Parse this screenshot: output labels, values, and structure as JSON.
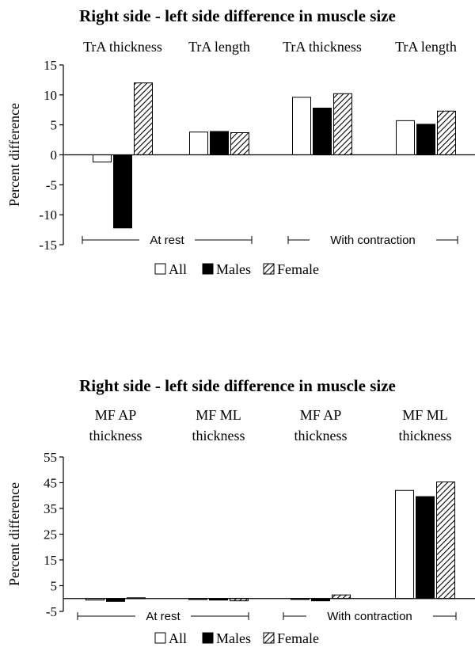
{
  "chart_data": [
    {
      "type": "bar",
      "title": "Right side - left side difference in muscle size",
      "ylabel": "Percent difference",
      "ylim": [
        -15,
        15
      ],
      "yticks": [
        15,
        10,
        5,
        0,
        -5,
        -10,
        -15
      ],
      "categories": [
        [
          "TrA thickness"
        ],
        [
          "TrA length"
        ],
        [
          "TrA thickness"
        ],
        [
          "TrA length"
        ]
      ],
      "groups": [
        "At rest",
        "With contraction"
      ],
      "series": [
        {
          "name": "All",
          "values": [
            -1.2,
            3.8,
            9.6,
            5.7
          ]
        },
        {
          "name": "Males",
          "values": [
            -12.2,
            3.9,
            7.8,
            5.1
          ]
        },
        {
          "name": "Female",
          "values": [
            12.0,
            3.7,
            10.2,
            7.3
          ]
        }
      ],
      "legend": "bottom",
      "grid": false
    },
    {
      "type": "bar",
      "title": "Right side - left side difference in muscle size",
      "ylabel": "Percent difference",
      "ylim": [
        -5,
        55
      ],
      "yticks": [
        55,
        45,
        35,
        25,
        15,
        5,
        -5
      ],
      "categories": [
        [
          "MF AP",
          "thickness"
        ],
        [
          "MF ML",
          "thickness"
        ],
        [
          "MF AP",
          "thickness"
        ],
        [
          "MF ML",
          "thickness"
        ]
      ],
      "groups": [
        "At rest",
        "With contraction"
      ],
      "series": [
        {
          "name": "All",
          "values": [
            -0.6,
            -0.4,
            -0.3,
            42.0
          ]
        },
        {
          "name": "Males",
          "values": [
            -1.1,
            -0.6,
            -0.9,
            39.6
          ]
        },
        {
          "name": "Female",
          "values": [
            0.3,
            -0.9,
            1.4,
            45.3
          ]
        }
      ],
      "legend": "bottom",
      "grid": false
    }
  ]
}
